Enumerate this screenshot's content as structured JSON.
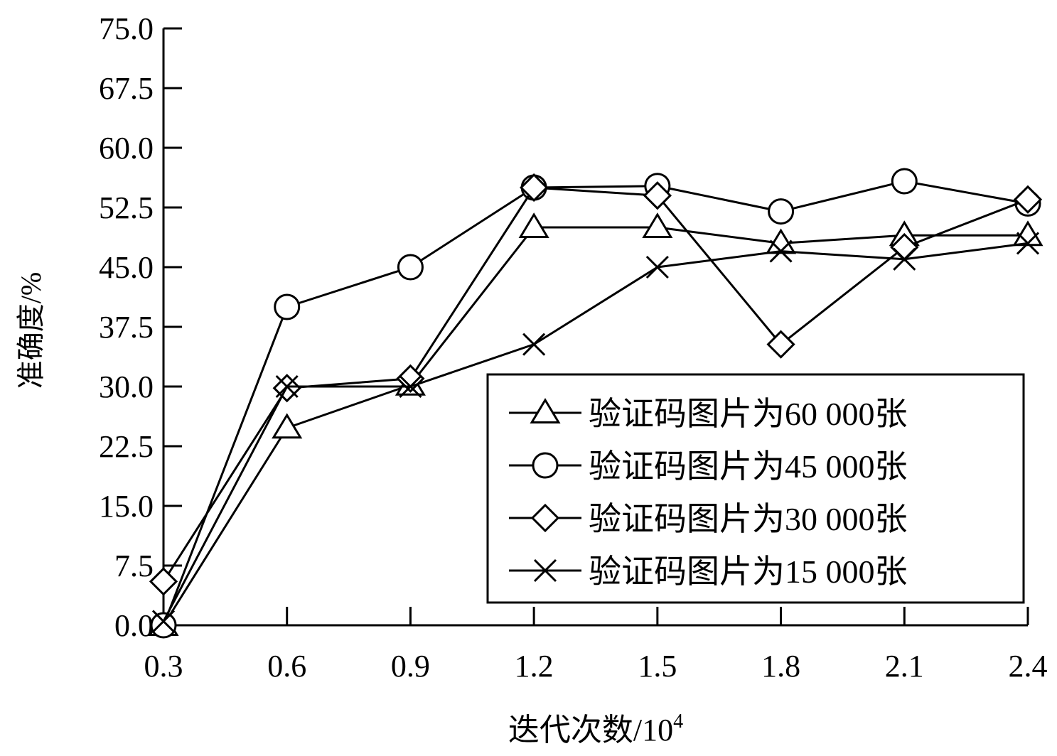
{
  "chart_data": {
    "type": "line",
    "title": "",
    "xlabel": "迭代次数/10",
    "xlabel_superscript": "4",
    "ylabel": "准确度/%",
    "x": [
      0.3,
      0.6,
      0.9,
      1.2,
      1.5,
      1.8,
      2.1,
      2.4
    ],
    "x_tick_labels": [
      "0.3",
      "0.6",
      "0.9",
      "1.2",
      "1.5",
      "1.8",
      "2.1",
      "2.4"
    ],
    "xlim": [
      0.3,
      2.4
    ],
    "y_ticks": [
      0,
      7.5,
      15,
      22.5,
      30,
      37.5,
      45,
      52.5,
      60,
      67.5,
      75
    ],
    "y_tick_labels": [
      "0.0",
      "7.5",
      "15.0",
      "22.5",
      "30.0",
      "37.5",
      "45.0",
      "52.5",
      "60.0",
      "67.5",
      "75.0"
    ],
    "ylim": [
      0,
      75
    ],
    "grid": false,
    "legend_position": "lower-right",
    "series": [
      {
        "name": "验证码图片为60 000张",
        "marker": "triangle",
        "values": [
          0,
          24.8,
          30.2,
          50.0,
          50.0,
          48.0,
          49.0,
          49.0
        ]
      },
      {
        "name": "验证码图片为45 000张",
        "marker": "circle",
        "values": [
          0,
          40.0,
          45.0,
          55.0,
          55.2,
          52.0,
          55.8,
          53.0
        ]
      },
      {
        "name": "验证码图片为30 000张",
        "marker": "diamond",
        "values": [
          5.5,
          29.8,
          31.0,
          55.0,
          54.0,
          35.3,
          47.5,
          53.5
        ]
      },
      {
        "name": "验证码图片为15 000张",
        "marker": "cross",
        "values": [
          0.5,
          30.0,
          30.0,
          35.3,
          45.0,
          47.0,
          46.0,
          48.0
        ]
      }
    ],
    "colors": {
      "line": "#000000",
      "background": "#ffffff"
    }
  }
}
